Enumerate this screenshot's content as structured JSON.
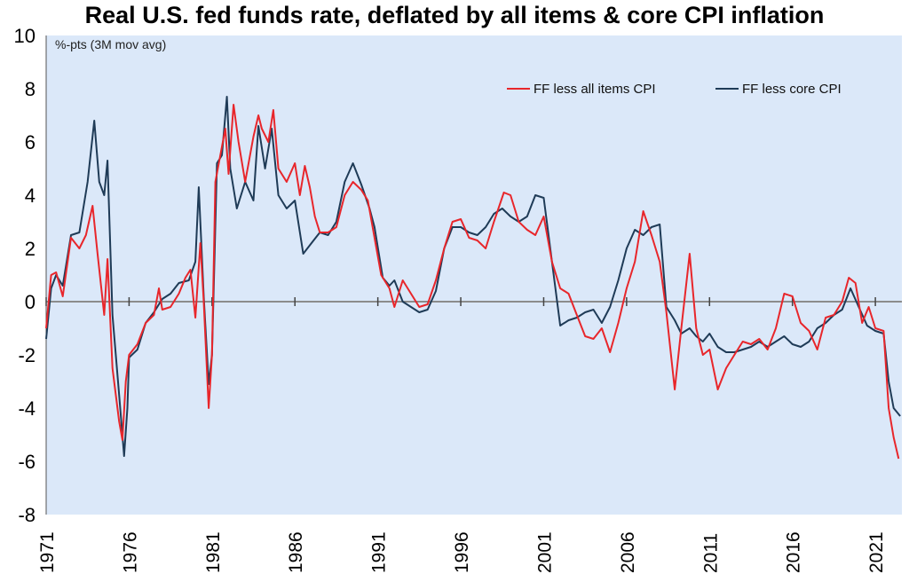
{
  "chart_data": {
    "type": "line",
    "title": "Real U.S. fed funds rate, deflated by all items & core CPI inflation",
    "unit_label": "%-pts (3M mov avg)",
    "ylim": [
      -8,
      10
    ],
    "y_ticks": [
      10,
      8,
      6,
      4,
      2,
      0,
      -2,
      -4,
      -6,
      -8
    ],
    "xlim": [
      1971,
      2022.6
    ],
    "x_ticks": [
      "1971",
      "1976",
      "1981",
      "1986",
      "1991",
      "1996",
      "2001",
      "2006",
      "2011",
      "2016",
      "2021"
    ],
    "legend_position": "top-right",
    "background_color": "#dbe8f9",
    "zero_line_color": "#8c8c8c",
    "series": [
      {
        "name": "FF less all items CPI",
        "color": "#e8262b",
        "points": [
          [
            1971.0,
            -1.0
          ],
          [
            1971.3,
            1.0
          ],
          [
            1971.6,
            1.1
          ],
          [
            1972.0,
            0.2
          ],
          [
            1972.5,
            2.4
          ],
          [
            1973.0,
            2.0
          ],
          [
            1973.4,
            2.5
          ],
          [
            1973.8,
            3.6
          ],
          [
            1974.1,
            1.8
          ],
          [
            1974.5,
            -0.5
          ],
          [
            1974.7,
            1.6
          ],
          [
            1975.0,
            -2.5
          ],
          [
            1975.4,
            -4.5
          ],
          [
            1975.6,
            -5.2
          ],
          [
            1975.8,
            -3.0
          ],
          [
            1976.0,
            -2.0
          ],
          [
            1976.5,
            -1.6
          ],
          [
            1977.0,
            -0.8
          ],
          [
            1977.5,
            -0.5
          ],
          [
            1977.8,
            0.5
          ],
          [
            1978.0,
            -0.3
          ],
          [
            1978.5,
            -0.2
          ],
          [
            1979.0,
            0.3
          ],
          [
            1979.4,
            0.9
          ],
          [
            1979.7,
            1.2
          ],
          [
            1980.0,
            -0.6
          ],
          [
            1980.3,
            2.2
          ],
          [
            1980.5,
            0.0
          ],
          [
            1980.8,
            -4.0
          ],
          [
            1981.0,
            -2.0
          ],
          [
            1981.2,
            4.5
          ],
          [
            1981.5,
            5.5
          ],
          [
            1981.8,
            6.5
          ],
          [
            1982.0,
            4.8
          ],
          [
            1982.3,
            7.4
          ],
          [
            1982.6,
            6.0
          ],
          [
            1983.0,
            4.5
          ],
          [
            1983.5,
            6.2
          ],
          [
            1983.8,
            7.0
          ],
          [
            1984.0,
            6.5
          ],
          [
            1984.4,
            6.0
          ],
          [
            1984.7,
            7.2
          ],
          [
            1985.0,
            5.0
          ],
          [
            1985.5,
            4.5
          ],
          [
            1986.0,
            5.2
          ],
          [
            1986.3,
            4.0
          ],
          [
            1986.6,
            5.1
          ],
          [
            1986.9,
            4.3
          ],
          [
            1987.2,
            3.2
          ],
          [
            1987.5,
            2.6
          ],
          [
            1988.0,
            2.6
          ],
          [
            1988.5,
            2.8
          ],
          [
            1989.0,
            4.0
          ],
          [
            1989.5,
            4.5
          ],
          [
            1990.0,
            4.2
          ],
          [
            1990.4,
            3.8
          ],
          [
            1990.8,
            2.4
          ],
          [
            1991.2,
            1.0
          ],
          [
            1991.7,
            0.5
          ],
          [
            1992.0,
            -0.2
          ],
          [
            1992.5,
            0.8
          ],
          [
            1993.0,
            0.3
          ],
          [
            1993.5,
            -0.2
          ],
          [
            1994.0,
            -0.1
          ],
          [
            1994.5,
            0.8
          ],
          [
            1995.0,
            2.0
          ],
          [
            1995.5,
            3.0
          ],
          [
            1996.0,
            3.1
          ],
          [
            1996.5,
            2.4
          ],
          [
            1997.0,
            2.3
          ],
          [
            1997.5,
            2.0
          ],
          [
            1998.0,
            3.0
          ],
          [
            1998.6,
            4.1
          ],
          [
            1999.0,
            4.0
          ],
          [
            1999.5,
            3.0
          ],
          [
            2000.0,
            2.7
          ],
          [
            2000.5,
            2.5
          ],
          [
            2001.0,
            3.2
          ],
          [
            2001.5,
            1.5
          ],
          [
            2002.0,
            0.5
          ],
          [
            2002.5,
            0.3
          ],
          [
            2003.0,
            -0.5
          ],
          [
            2003.5,
            -1.3
          ],
          [
            2004.0,
            -1.4
          ],
          [
            2004.5,
            -1.0
          ],
          [
            2005.0,
            -1.9
          ],
          [
            2005.5,
            -0.8
          ],
          [
            2006.0,
            0.5
          ],
          [
            2006.5,
            1.5
          ],
          [
            2007.0,
            3.4
          ],
          [
            2007.5,
            2.5
          ],
          [
            2008.0,
            1.5
          ],
          [
            2008.4,
            -0.4
          ],
          [
            2008.9,
            -3.3
          ],
          [
            2009.3,
            -1.0
          ],
          [
            2009.8,
            1.8
          ],
          [
            2010.2,
            -1.0
          ],
          [
            2010.6,
            -2.0
          ],
          [
            2011.0,
            -1.8
          ],
          [
            2011.5,
            -3.3
          ],
          [
            2012.0,
            -2.5
          ],
          [
            2012.5,
            -2.0
          ],
          [
            2013.0,
            -1.5
          ],
          [
            2013.5,
            -1.6
          ],
          [
            2014.0,
            -1.4
          ],
          [
            2014.5,
            -1.8
          ],
          [
            2015.0,
            -1.0
          ],
          [
            2015.5,
            0.3
          ],
          [
            2016.0,
            0.2
          ],
          [
            2016.5,
            -0.8
          ],
          [
            2017.0,
            -1.1
          ],
          [
            2017.5,
            -1.8
          ],
          [
            2018.0,
            -0.6
          ],
          [
            2018.5,
            -0.5
          ],
          [
            2019.0,
            0.0
          ],
          [
            2019.4,
            0.9
          ],
          [
            2019.8,
            0.7
          ],
          [
            2020.2,
            -0.8
          ],
          [
            2020.6,
            -0.2
          ],
          [
            2021.0,
            -1.0
          ],
          [
            2021.5,
            -1.1
          ],
          [
            2021.8,
            -4.0
          ],
          [
            2022.1,
            -5.1
          ],
          [
            2022.4,
            -5.9
          ]
        ]
      },
      {
        "name": "FF less core CPI",
        "color": "#1f3b57",
        "points": [
          [
            1971.0,
            -1.4
          ],
          [
            1971.3,
            0.5
          ],
          [
            1971.6,
            1.0
          ],
          [
            1972.0,
            0.6
          ],
          [
            1972.5,
            2.5
          ],
          [
            1973.0,
            2.6
          ],
          [
            1973.5,
            4.5
          ],
          [
            1973.9,
            6.8
          ],
          [
            1974.2,
            4.5
          ],
          [
            1974.5,
            4.0
          ],
          [
            1974.7,
            5.3
          ],
          [
            1975.0,
            -0.5
          ],
          [
            1975.4,
            -3.5
          ],
          [
            1975.7,
            -5.8
          ],
          [
            1975.9,
            -4.0
          ],
          [
            1976.0,
            -2.1
          ],
          [
            1976.5,
            -1.8
          ],
          [
            1977.0,
            -0.8
          ],
          [
            1977.5,
            -0.4
          ],
          [
            1978.0,
            0.1
          ],
          [
            1978.5,
            0.3
          ],
          [
            1979.0,
            0.7
          ],
          [
            1979.6,
            0.8
          ],
          [
            1980.0,
            1.5
          ],
          [
            1980.2,
            4.3
          ],
          [
            1980.5,
            0.2
          ],
          [
            1980.8,
            -3.1
          ],
          [
            1981.0,
            -2.0
          ],
          [
            1981.3,
            5.2
          ],
          [
            1981.6,
            5.5
          ],
          [
            1981.9,
            7.7
          ],
          [
            1982.1,
            5.0
          ],
          [
            1982.5,
            3.5
          ],
          [
            1983.0,
            4.5
          ],
          [
            1983.5,
            3.8
          ],
          [
            1983.8,
            6.6
          ],
          [
            1984.2,
            5.0
          ],
          [
            1984.6,
            6.5
          ],
          [
            1985.0,
            4.0
          ],
          [
            1985.5,
            3.5
          ],
          [
            1986.0,
            3.8
          ],
          [
            1986.5,
            1.8
          ],
          [
            1987.0,
            2.2
          ],
          [
            1987.5,
            2.6
          ],
          [
            1988.0,
            2.5
          ],
          [
            1988.5,
            3.0
          ],
          [
            1989.0,
            4.5
          ],
          [
            1989.5,
            5.2
          ],
          [
            1990.0,
            4.4
          ],
          [
            1990.5,
            3.5
          ],
          [
            1990.8,
            2.8
          ],
          [
            1991.3,
            0.9
          ],
          [
            1991.7,
            0.6
          ],
          [
            1992.0,
            0.8
          ],
          [
            1992.5,
            0.0
          ],
          [
            1993.0,
            -0.2
          ],
          [
            1993.5,
            -0.4
          ],
          [
            1994.0,
            -0.3
          ],
          [
            1994.5,
            0.4
          ],
          [
            1995.0,
            2.0
          ],
          [
            1995.5,
            2.8
          ],
          [
            1996.0,
            2.8
          ],
          [
            1996.5,
            2.6
          ],
          [
            1997.0,
            2.5
          ],
          [
            1997.5,
            2.8
          ],
          [
            1998.0,
            3.3
          ],
          [
            1998.5,
            3.5
          ],
          [
            1999.0,
            3.2
          ],
          [
            1999.5,
            3.0
          ],
          [
            2000.0,
            3.2
          ],
          [
            2000.5,
            4.0
          ],
          [
            2001.0,
            3.9
          ],
          [
            2001.5,
            1.5
          ],
          [
            2002.0,
            -0.9
          ],
          [
            2002.5,
            -0.7
          ],
          [
            2003.0,
            -0.6
          ],
          [
            2003.5,
            -0.4
          ],
          [
            2004.0,
            -0.3
          ],
          [
            2004.5,
            -0.8
          ],
          [
            2005.0,
            -0.2
          ],
          [
            2005.5,
            0.8
          ],
          [
            2006.0,
            2.0
          ],
          [
            2006.5,
            2.7
          ],
          [
            2007.0,
            2.5
          ],
          [
            2007.5,
            2.8
          ],
          [
            2008.0,
            2.9
          ],
          [
            2008.4,
            -0.2
          ],
          [
            2008.9,
            -0.7
          ],
          [
            2009.3,
            -1.2
          ],
          [
            2009.8,
            -1.0
          ],
          [
            2010.2,
            -1.3
          ],
          [
            2010.6,
            -1.5
          ],
          [
            2011.0,
            -1.2
          ],
          [
            2011.5,
            -1.7
          ],
          [
            2012.0,
            -1.9
          ],
          [
            2012.5,
            -1.9
          ],
          [
            2013.0,
            -1.8
          ],
          [
            2013.5,
            -1.7
          ],
          [
            2014.0,
            -1.5
          ],
          [
            2014.5,
            -1.7
          ],
          [
            2015.0,
            -1.5
          ],
          [
            2015.5,
            -1.3
          ],
          [
            2016.0,
            -1.6
          ],
          [
            2016.5,
            -1.7
          ],
          [
            2017.0,
            -1.5
          ],
          [
            2017.5,
            -1.0
          ],
          [
            2018.0,
            -0.8
          ],
          [
            2018.5,
            -0.5
          ],
          [
            2019.0,
            -0.3
          ],
          [
            2019.5,
            0.5
          ],
          [
            2020.0,
            -0.2
          ],
          [
            2020.5,
            -0.9
          ],
          [
            2021.0,
            -1.1
          ],
          [
            2021.5,
            -1.2
          ],
          [
            2021.8,
            -3.0
          ],
          [
            2022.1,
            -4.0
          ],
          [
            2022.5,
            -4.3
          ]
        ]
      }
    ]
  }
}
